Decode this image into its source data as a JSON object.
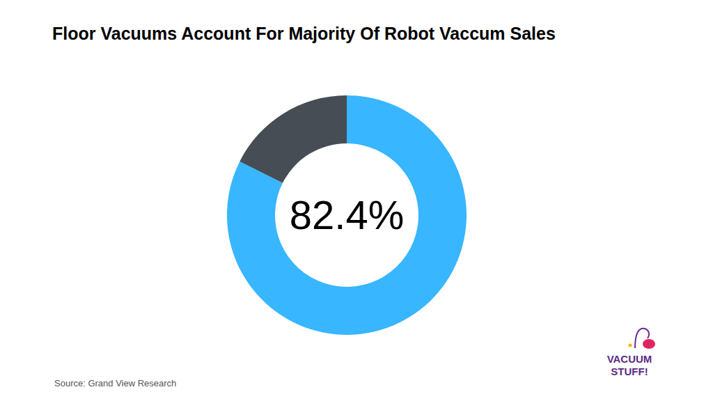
{
  "chart_data": {
    "type": "pie",
    "title": "Floor Vacuums Account For Majority Of Robot Vaccum Sales",
    "categories": [
      null,
      null
    ],
    "values": [
      82.4,
      17.6
    ],
    "value_labels": [
      "82.4%",
      null
    ],
    "data_labels": true,
    "colors": [
      "#38b6ff",
      "#474d55"
    ],
    "source": "Source: Grand View Research",
    "logo": [
      "VACUUM",
      "STUFF!"
    ]
  }
}
